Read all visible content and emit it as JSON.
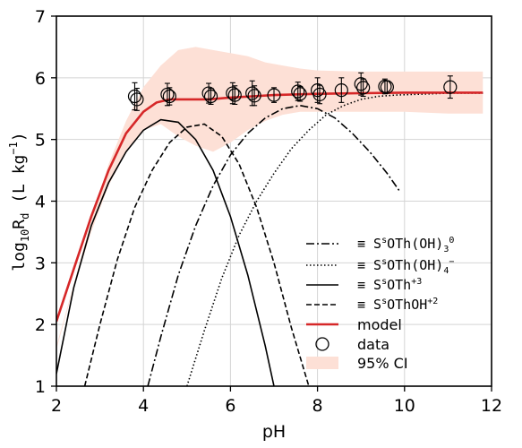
{
  "chart_data": {
    "type": "line",
    "xlabel": "pH",
    "ylabel": "log10Rd (L kg-1)",
    "ylabel_parts": {
      "pre": "log",
      "sub1": "10",
      "mid": "R",
      "sub2": "d",
      "post": " (L kg",
      "sup": "−1",
      "end": ")"
    },
    "xlim": [
      2,
      12
    ],
    "ylim": [
      1,
      7
    ],
    "xticks": [
      2,
      4,
      6,
      8,
      10,
      12
    ],
    "yticks": [
      1,
      2,
      3,
      4,
      5,
      6,
      7
    ],
    "grid": true,
    "legend_position": "lower-right",
    "colors": {
      "model": "#d62728",
      "ci_fill": "#fde0d6",
      "species": "#000000",
      "data": "#000000"
    },
    "series": [
      {
        "name": "≡ SsOTh(OH)30",
        "label_parts": {
          "pre": "≡ S",
          "sup1": "s",
          "mid": "OTh(OH)",
          "sub": "3",
          "sup2": "0"
        },
        "style": "dashdot",
        "x": [
          4.1,
          4.4,
          4.8,
          5.2,
          5.6,
          6.0,
          6.4,
          6.8,
          7.2,
          7.6,
          8.0,
          8.4,
          8.8,
          9.2,
          9.6,
          9.9
        ],
        "y": [
          1.0,
          1.8,
          2.8,
          3.6,
          4.25,
          4.75,
          5.1,
          5.35,
          5.5,
          5.55,
          5.5,
          5.35,
          5.1,
          4.8,
          4.45,
          4.15
        ]
      },
      {
        "name": "≡ SsOTh(OH)4−",
        "label_parts": {
          "pre": "≡ S",
          "sup1": "s",
          "mid": "OTh(OH)",
          "sub": "4",
          "sup2": "−"
        },
        "style": "dotted",
        "x": [
          5.0,
          5.4,
          5.8,
          6.2,
          6.6,
          7.0,
          7.4,
          7.8,
          8.2,
          8.6,
          9.0,
          9.4,
          9.8,
          10.2,
          10.6,
          11.0,
          11.5,
          11.8
        ],
        "y": [
          1.0,
          1.9,
          2.75,
          3.45,
          4.0,
          4.45,
          4.85,
          5.15,
          5.4,
          5.55,
          5.65,
          5.7,
          5.72,
          5.73,
          5.74,
          5.75,
          5.75,
          5.75
        ]
      },
      {
        "name": "≡ SsOTh+3",
        "label_parts": {
          "pre": "≡ S",
          "sup1": "s",
          "mid": "OTh",
          "sub": "",
          "sup2": "+3"
        },
        "style": "solid",
        "x": [
          2.0,
          2.4,
          2.8,
          3.2,
          3.6,
          4.0,
          4.4,
          4.8,
          5.2,
          5.6,
          6.0,
          6.4,
          6.8,
          7.0
        ],
        "y": [
          1.2,
          2.6,
          3.6,
          4.3,
          4.8,
          5.15,
          5.32,
          5.28,
          5.0,
          4.5,
          3.75,
          2.8,
          1.65,
          1.0
        ]
      },
      {
        "name": "≡ SsOThOH+2",
        "label_parts": {
          "pre": "≡ S",
          "sup1": "s",
          "mid": "OThOH",
          "sub": "",
          "sup2": "+2"
        },
        "style": "dashed",
        "x": [
          2.65,
          3.0,
          3.4,
          3.8,
          4.2,
          4.6,
          5.0,
          5.4,
          5.8,
          6.2,
          6.6,
          7.0,
          7.4,
          7.8
        ],
        "y": [
          1.0,
          2.0,
          3.05,
          3.9,
          4.5,
          4.95,
          5.2,
          5.25,
          5.05,
          4.6,
          3.9,
          3.0,
          1.95,
          1.0
        ]
      },
      {
        "name": "model",
        "style": "model",
        "x": [
          2.0,
          2.4,
          2.8,
          3.2,
          3.6,
          4.0,
          4.3,
          4.6,
          5.0,
          5.5,
          6.0,
          6.5,
          7.0,
          8.0,
          9.0,
          10.0,
          11.0,
          11.8
        ],
        "y": [
          2.05,
          2.9,
          3.75,
          4.5,
          5.1,
          5.45,
          5.6,
          5.65,
          5.65,
          5.65,
          5.68,
          5.7,
          5.72,
          5.74,
          5.75,
          5.76,
          5.76,
          5.76
        ]
      },
      {
        "name": "95% CI",
        "style": "band",
        "x": [
          2.0,
          2.4,
          2.8,
          3.2,
          3.6,
          4.0,
          4.4,
          4.8,
          5.2,
          5.6,
          6.0,
          6.4,
          6.8,
          7.2,
          7.6,
          8.0,
          9.0,
          10.0,
          11.0,
          11.8
        ],
        "upper": [
          1.65,
          2.65,
          3.7,
          4.6,
          5.3,
          5.85,
          6.2,
          6.45,
          6.5,
          6.45,
          6.4,
          6.35,
          6.25,
          6.2,
          6.15,
          6.12,
          6.1,
          6.1,
          6.1,
          6.1
        ],
        "lower": [
          1.6,
          2.6,
          3.5,
          4.25,
          4.8,
          5.15,
          5.25,
          5.05,
          4.9,
          4.8,
          4.95,
          5.15,
          5.3,
          5.4,
          5.45,
          5.45,
          5.45,
          5.45,
          5.42,
          5.42
        ]
      },
      {
        "name": "data",
        "style": "markers",
        "x": [
          3.8,
          3.85,
          4.55,
          4.6,
          5.5,
          5.55,
          6.05,
          6.1,
          6.5,
          6.55,
          7.0,
          7.55,
          7.6,
          8.0,
          8.05,
          8.55,
          9.0,
          9.05,
          9.55,
          9.6,
          11.05
        ],
        "y": [
          5.7,
          5.65,
          5.73,
          5.7,
          5.75,
          5.7,
          5.75,
          5.72,
          5.75,
          5.71,
          5.72,
          5.78,
          5.74,
          5.8,
          5.73,
          5.8,
          5.9,
          5.84,
          5.86,
          5.85,
          5.85
        ],
        "err": [
          0.22,
          0.18,
          0.18,
          0.14,
          0.16,
          0.13,
          0.17,
          0.15,
          0.2,
          0.16,
          0.12,
          0.15,
          0.12,
          0.2,
          0.15,
          0.2,
          0.18,
          0.14,
          0.12,
          0.1,
          0.18
        ]
      }
    ]
  }
}
